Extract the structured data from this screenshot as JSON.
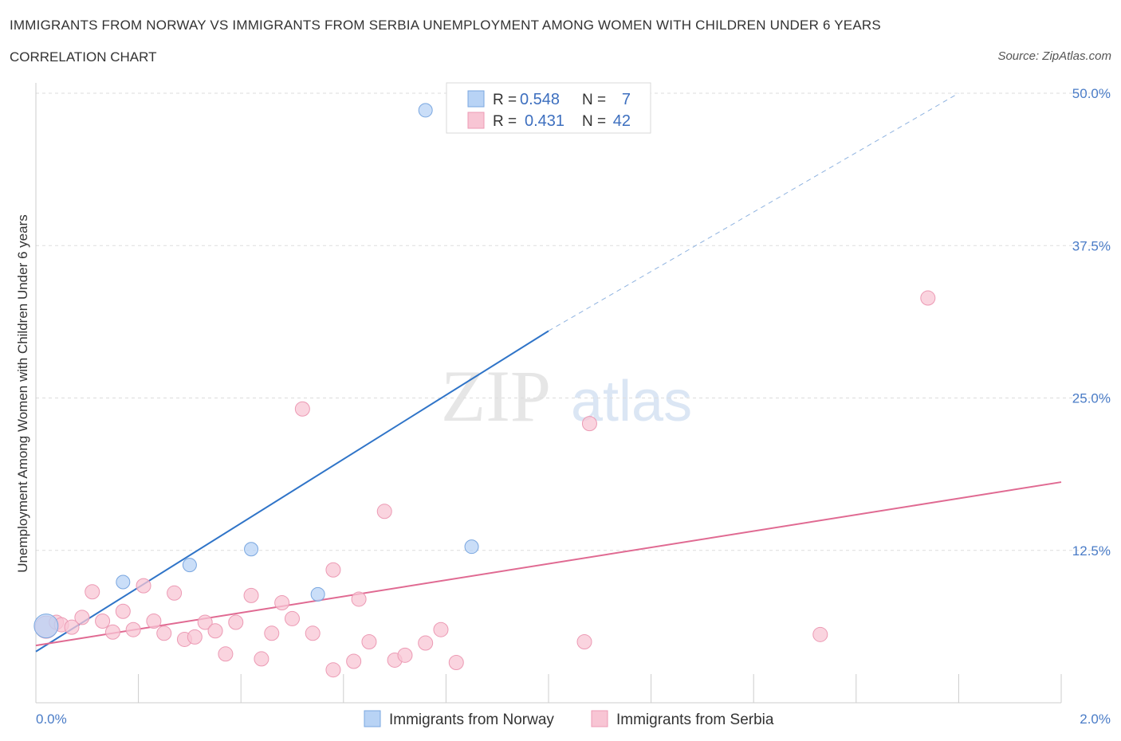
{
  "header": {
    "title": "IMMIGRANTS FROM NORWAY VS IMMIGRANTS FROM SERBIA UNEMPLOYMENT AMONG WOMEN WITH CHILDREN UNDER 6 YEARS",
    "subtitle": "CORRELATION CHART",
    "source": "Source: ZipAtlas.com"
  },
  "watermark": {
    "zip": "ZIP",
    "atlas": "atlas"
  },
  "legend": {
    "r_label": "R =",
    "n_label": "N =",
    "norway": {
      "r": "0.548",
      "n": "7"
    },
    "serbia": {
      "r": "0.431",
      "n": "42"
    }
  },
  "colors": {
    "norway_fill": "#b8d3f5",
    "norway_stroke": "#7aa7e0",
    "norway_line": "#2f74c8",
    "serbia_fill": "#f8c5d4",
    "serbia_stroke": "#ec9ab4",
    "serbia_line": "#e06a92",
    "tick_text": "#4a7cc7"
  },
  "chart_data": {
    "type": "scatter",
    "title": "IMMIGRANTS FROM NORWAY VS IMMIGRANTS FROM SERBIA UNEMPLOYMENT AMONG WOMEN WITH CHILDREN UNDER 6 YEARS",
    "xlabel": "",
    "ylabel": "Unemployment Among Women with Children Under 6 years",
    "xlim": [
      0,
      2.0
    ],
    "ylim": [
      0,
      50
    ],
    "x_tick_labels": [
      "0.0%",
      "2.0%"
    ],
    "y_ticks": [
      12.5,
      25.0,
      37.5,
      50.0
    ],
    "y_tick_labels": [
      "12.5%",
      "25.0%",
      "37.5%",
      "50.0%"
    ],
    "grid": true,
    "legend_position": "bottom-center",
    "series": [
      {
        "name": "Immigrants from Norway",
        "points": [
          [
            0.02,
            6.3
          ],
          [
            0.17,
            9.9
          ],
          [
            0.3,
            11.3
          ],
          [
            0.42,
            12.6
          ],
          [
            0.55,
            8.9
          ],
          [
            0.76,
            48.6
          ],
          [
            0.85,
            12.8
          ]
        ],
        "trend": {
          "x0": 0.0,
          "y0": 4.2,
          "x1": 1.0,
          "y1": 30.5,
          "dashed_to_x": 1.8,
          "dashed_to_y": 50.0
        }
      },
      {
        "name": "Immigrants from Serbia",
        "points": [
          [
            0.02,
            6.2
          ],
          [
            0.04,
            6.6
          ],
          [
            0.05,
            6.4
          ],
          [
            0.07,
            6.2
          ],
          [
            0.09,
            7.0
          ],
          [
            0.11,
            9.1
          ],
          [
            0.13,
            6.7
          ],
          [
            0.15,
            5.8
          ],
          [
            0.17,
            7.5
          ],
          [
            0.19,
            6.0
          ],
          [
            0.21,
            9.6
          ],
          [
            0.23,
            6.7
          ],
          [
            0.25,
            5.7
          ],
          [
            0.27,
            9.0
          ],
          [
            0.29,
            5.2
          ],
          [
            0.31,
            5.4
          ],
          [
            0.33,
            6.6
          ],
          [
            0.35,
            5.9
          ],
          [
            0.37,
            4.0
          ],
          [
            0.39,
            6.6
          ],
          [
            0.42,
            8.8
          ],
          [
            0.44,
            3.6
          ],
          [
            0.46,
            5.7
          ],
          [
            0.48,
            8.2
          ],
          [
            0.5,
            6.9
          ],
          [
            0.52,
            24.1
          ],
          [
            0.54,
            5.7
          ],
          [
            0.58,
            2.7
          ],
          [
            0.58,
            10.9
          ],
          [
            0.62,
            3.4
          ],
          [
            0.63,
            8.5
          ],
          [
            0.65,
            5.0
          ],
          [
            0.68,
            15.7
          ],
          [
            0.7,
            3.5
          ],
          [
            0.72,
            3.9
          ],
          [
            0.76,
            4.9
          ],
          [
            0.79,
            6.0
          ],
          [
            0.82,
            3.3
          ],
          [
            1.07,
            5.0
          ],
          [
            1.08,
            22.9
          ],
          [
            1.53,
            5.6
          ],
          [
            1.74,
            33.2
          ]
        ],
        "trend": {
          "x0": 0.0,
          "y0": 4.7,
          "x1": 2.0,
          "y1": 18.1
        }
      }
    ]
  },
  "bottom_legend": {
    "norway_label": "Immigrants from Norway",
    "serbia_label": "Immigrants from Serbia"
  }
}
